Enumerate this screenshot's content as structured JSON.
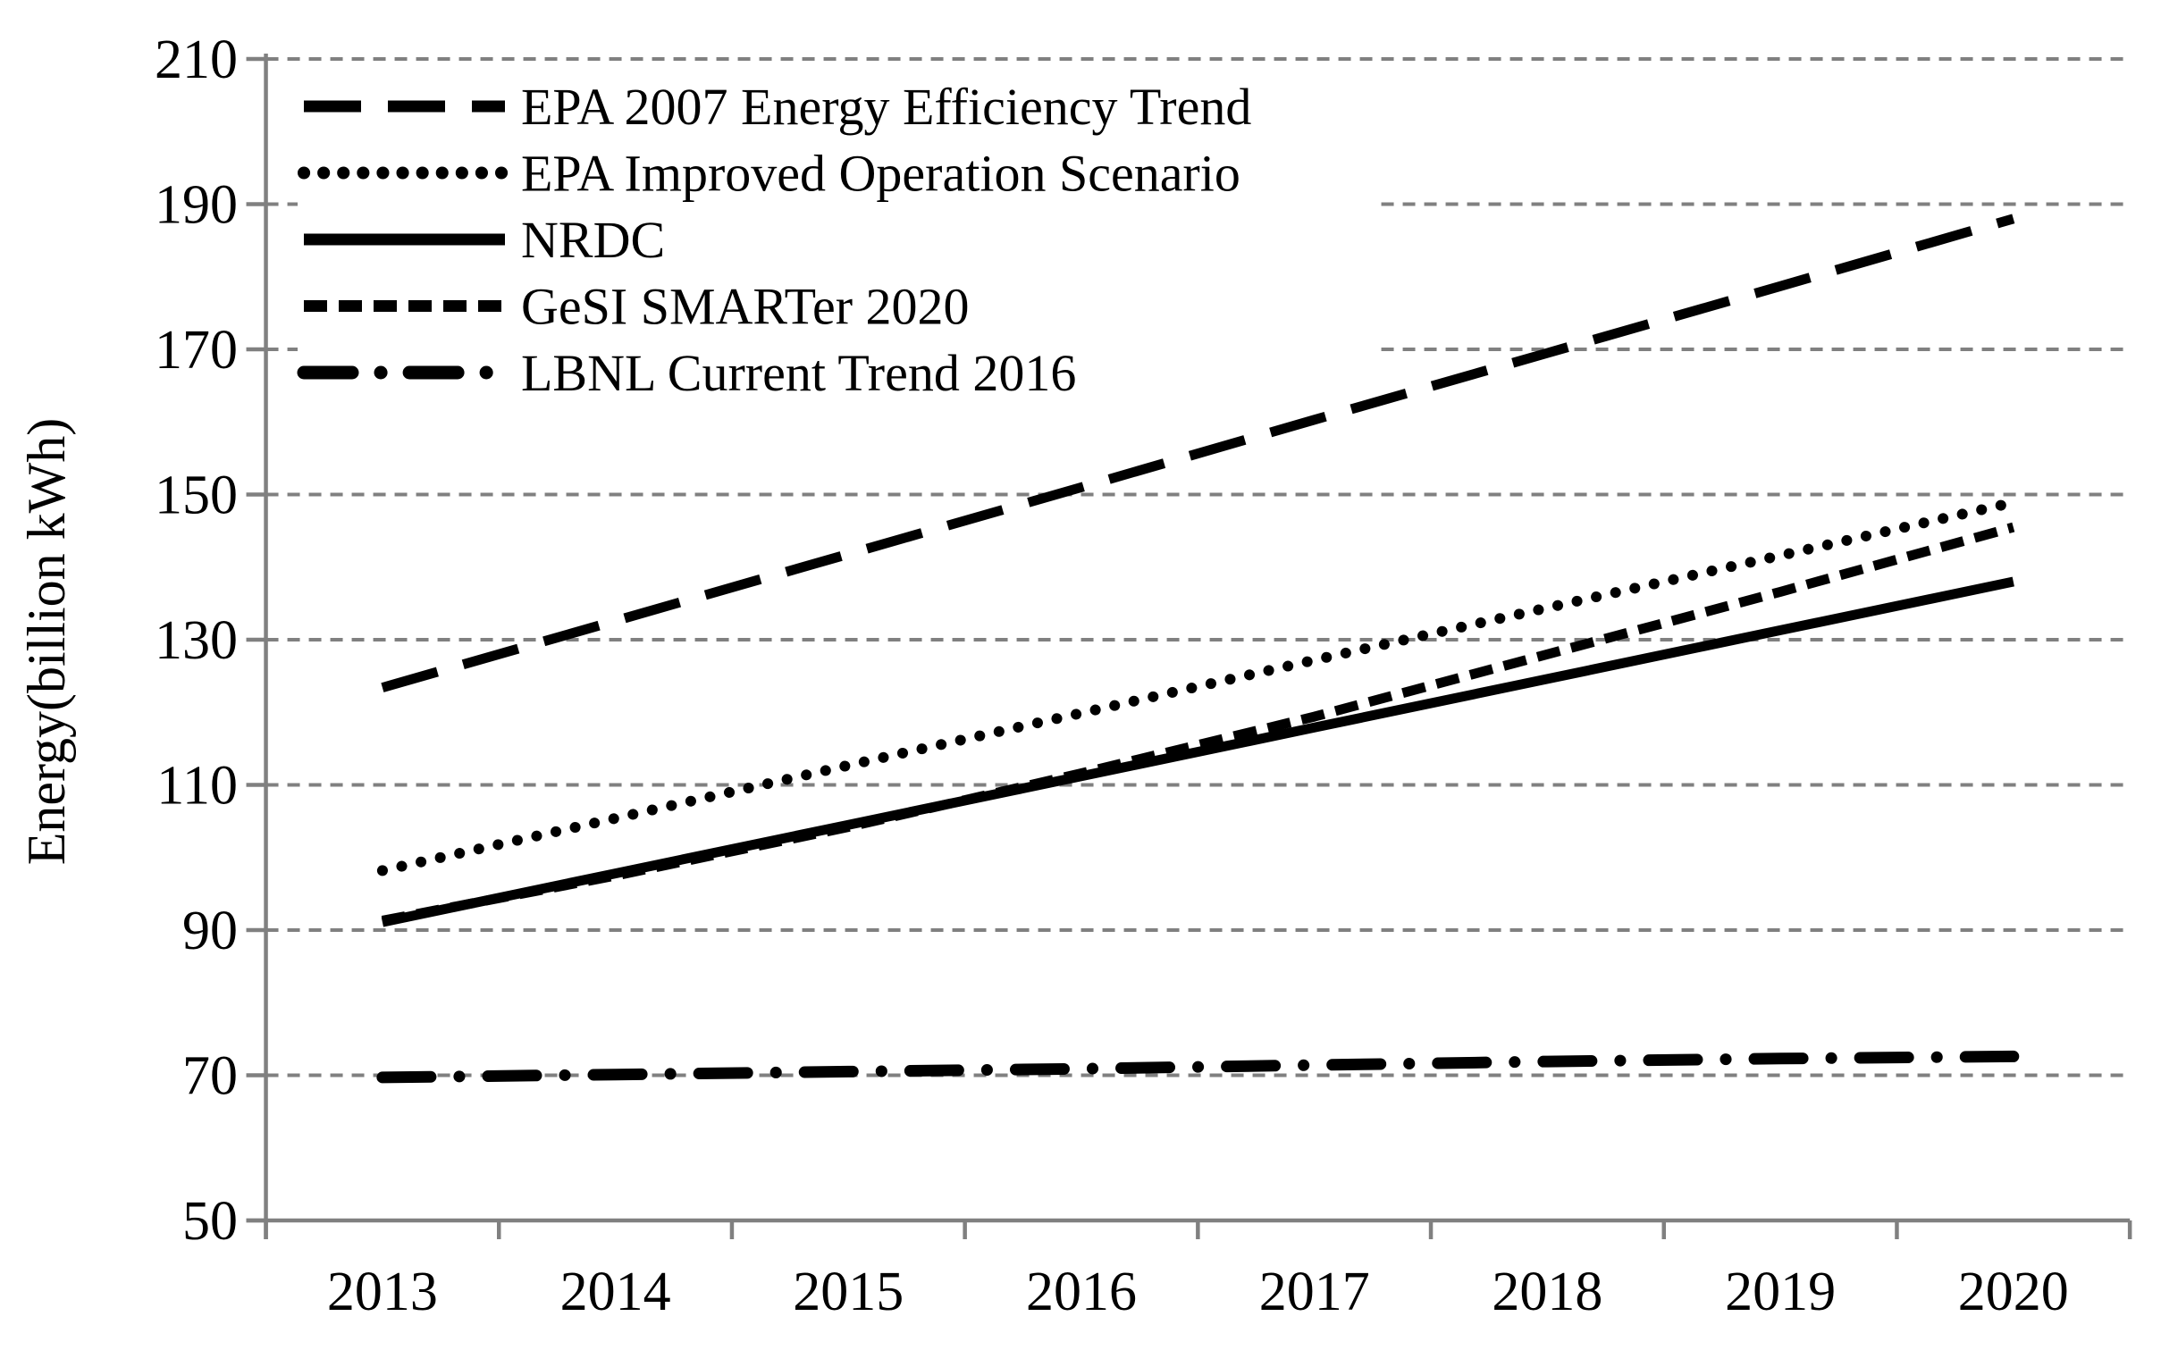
{
  "chart_data": {
    "type": "line",
    "title": "",
    "xlabel": "",
    "ylabel": "Energy(billion kWh)",
    "x": [
      2013,
      2014,
      2015,
      2016,
      2017,
      2018,
      2019,
      2020
    ],
    "ylim": [
      50,
      210
    ],
    "yticks": [
      50,
      70,
      90,
      110,
      130,
      150,
      170,
      190,
      210
    ],
    "grid": "horizontal-dashed",
    "legend_position": "top-left-inside",
    "series": [
      {
        "name": "EPA 2007 Energy Efficiency Trend",
        "style": "long-dash",
        "values": [
          123.4,
          132.6,
          141.8,
          151.0,
          160.3,
          169.5,
          178.7,
          188.0
        ]
      },
      {
        "name": "EPA Improved Operation Scenario",
        "style": "dotted",
        "values": [
          98.2,
          105.4,
          112.7,
          119.9,
          127.2,
          134.4,
          141.6,
          148.9
        ]
      },
      {
        "name": "NRDC",
        "style": "solid",
        "values": [
          91.1,
          97.8,
          104.5,
          111.2,
          117.9,
          124.6,
          131.3,
          138.0
        ]
      },
      {
        "name": "GeSI SMARTer 2020",
        "style": "short-dash",
        "values": [
          91.3,
          97.5,
          104.2,
          111.6,
          119.4,
          128.0,
          136.6,
          145.5
        ]
      },
      {
        "name": "LBNL Current Trend 2016",
        "style": "dash-dot",
        "values": [
          69.7,
          70.1,
          70.5,
          70.9,
          71.4,
          71.9,
          72.3,
          72.6
        ]
      }
    ],
    "colors": {
      "line": "#000000",
      "grid": "#808080",
      "axis": "#808080",
      "text": "#000000",
      "background": "#ffffff"
    }
  }
}
